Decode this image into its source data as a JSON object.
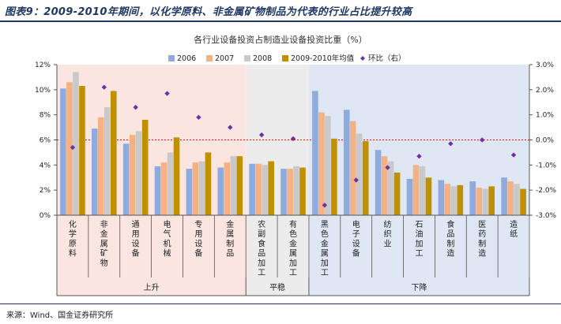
{
  "figure_title": "图表9：2009-2010年期间，以化学原料、非金属矿物制品为代表的行业占比提升较高",
  "source": "来源：Wind、国金证券研究所",
  "colors": {
    "s2006": "#8faadc",
    "s2007": "#f4b183",
    "s2008": "#c9c9c9",
    "s0910": "#bf9000",
    "ratio": "#7030a0",
    "zero_line": "#ff0000",
    "bg_up": "#fbe5e1",
    "bg_flat": "#ececec",
    "bg_down": "#dfe7f5"
  },
  "chart_data": {
    "type": "bar",
    "title": "各行业设备投资占制造业设备投资比重（%）",
    "categories": [
      "化学原料",
      "非金属矿物",
      "通用设备",
      "电气机械",
      "专用设备",
      "金属制品",
      "农副食品加工",
      "有色金属加工",
      "黑色金属加工",
      "电子设备",
      "纺织业",
      "石油加工",
      "食品制造",
      "医药制造",
      "造纸"
    ],
    "series": [
      {
        "name": "2006",
        "values": [
          10.1,
          6.9,
          5.7,
          3.9,
          3.7,
          3.8,
          4.1,
          3.7,
          9.9,
          8.4,
          5.2,
          2.9,
          2.8,
          2.7,
          3.0
        ]
      },
      {
        "name": "2007",
        "values": [
          10.6,
          7.8,
          6.4,
          4.2,
          4.2,
          4.2,
          4.1,
          3.7,
          8.2,
          7.5,
          4.7,
          4.0,
          2.5,
          2.2,
          2.7
        ]
      },
      {
        "name": "2008",
        "values": [
          11.4,
          8.6,
          6.7,
          5.0,
          4.3,
          4.7,
          4.0,
          3.9,
          7.9,
          6.5,
          4.3,
          3.9,
          2.3,
          2.1,
          2.5
        ]
      },
      {
        "name": "2009-2010年均值",
        "values": [
          10.3,
          9.9,
          7.6,
          6.2,
          5.0,
          4.7,
          4.3,
          3.8,
          6.1,
          5.9,
          3.4,
          3.0,
          2.4,
          2.3,
          2.1
        ]
      },
      {
        "name": "环比（右）",
        "axis": "right",
        "values": [
          -0.3,
          2.1,
          1.3,
          1.85,
          0.9,
          0.5,
          0.2,
          0.05,
          -2.6,
          -1.6,
          -1.1,
          -0.65,
          -0.15,
          0.0,
          -0.6
        ]
      }
    ],
    "left_axis": {
      "ylim": [
        0,
        12
      ],
      "ticks": [
        "0%",
        "2%",
        "4%",
        "6%",
        "8%",
        "10%",
        "12%"
      ]
    },
    "right_axis": {
      "ylim": [
        -3,
        3
      ],
      "ticks": [
        "-3.0%",
        "-2.0%",
        "-1.0%",
        "0.0%",
        "1.0%",
        "2.0%",
        "3.0%"
      ]
    },
    "groups": [
      {
        "label": "上升",
        "count": 6
      },
      {
        "label": "平稳",
        "count": 2
      },
      {
        "label": "下降",
        "count": 7
      }
    ],
    "legend_position": "top",
    "grid": false
  }
}
